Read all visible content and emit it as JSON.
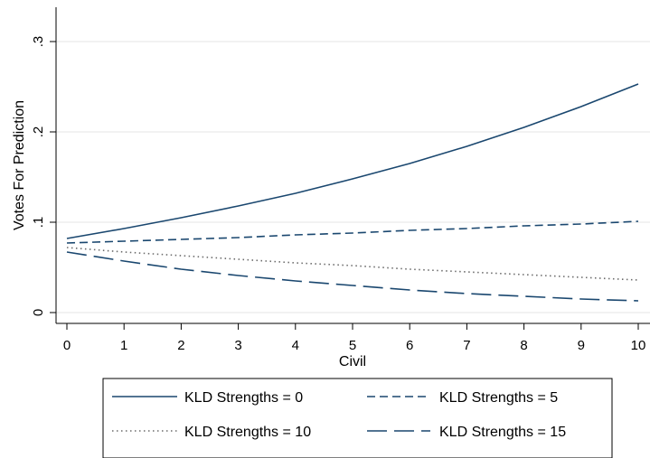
{
  "chart_data": {
    "type": "line",
    "xlabel": "Civil",
    "ylabel": "Votes For Prediction",
    "xlim": [
      0,
      10
    ],
    "ylim": [
      0,
      0.3
    ],
    "x_ticks": [
      0,
      1,
      2,
      3,
      4,
      5,
      6,
      7,
      8,
      9,
      10
    ],
    "x_tick_labels": [
      "0",
      "1",
      "2",
      "3",
      "4",
      "5",
      "6",
      "7",
      "8",
      "9",
      "10"
    ],
    "y_ticks": [
      0,
      0.1,
      0.2,
      0.3
    ],
    "y_tick_labels": [
      "0",
      ".1",
      ".2",
      ".3"
    ],
    "grid": "horizontal",
    "legend_placement": "bottom",
    "x": [
      0,
      1,
      2,
      3,
      4,
      5,
      6,
      7,
      8,
      9,
      10
    ],
    "series": [
      {
        "name": "KLD Strengths = 0",
        "label": "KLD Strengths = 0",
        "values": [
          0.082,
          0.093,
          0.105,
          0.118,
          0.132,
          0.148,
          0.165,
          0.184,
          0.205,
          0.228,
          0.253
        ],
        "color": "#1a476f",
        "dash": "solid"
      },
      {
        "name": "KLD Strengths = 5",
        "label": "KLD Strengths = 5",
        "values": [
          0.077,
          0.079,
          0.081,
          0.083,
          0.086,
          0.088,
          0.091,
          0.093,
          0.096,
          0.098,
          0.101
        ],
        "color": "#1a476f",
        "dash": "short"
      },
      {
        "name": "KLD Strengths = 10",
        "label": "KLD Strengths = 10",
        "values": [
          0.072,
          0.067,
          0.063,
          0.059,
          0.055,
          0.052,
          0.048,
          0.045,
          0.042,
          0.039,
          0.036
        ],
        "color": "#1a476f",
        "dash": "dotted"
      },
      {
        "name": "KLD Strengths = 15",
        "label": "KLD Strengths = 15",
        "values": [
          0.067,
          0.057,
          0.048,
          0.041,
          0.035,
          0.03,
          0.025,
          0.021,
          0.018,
          0.015,
          0.013
        ],
        "color": "#1a476f",
        "dash": "long"
      }
    ]
  }
}
